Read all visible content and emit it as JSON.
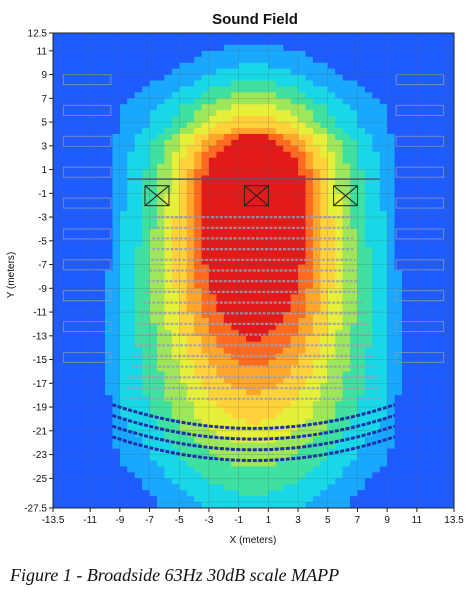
{
  "chart_data": {
    "type": "heatmap",
    "title": "Sound Field",
    "xlabel": "X (meters)",
    "ylabel": "Y (meters)",
    "xlim": [
      -13.5,
      13.5
    ],
    "ylim": [
      -27.5,
      12.5
    ],
    "x_ticks": [
      "-13.5",
      "-11",
      "-9",
      "-7",
      "-5",
      "-3",
      "-1",
      "1",
      "3",
      "5",
      "7",
      "9",
      "11",
      "13.5"
    ],
    "y_ticks": [
      "12.5",
      "11",
      "9",
      "7",
      "5",
      "3",
      "1",
      "-1",
      "-3",
      "-5",
      "-7",
      "-9",
      "-11",
      "-13",
      "-15",
      "-17",
      "-19",
      "-21",
      "-23",
      "-25",
      "-27.5"
    ],
    "grid": true,
    "color_scale": [
      "#1e5cff",
      "#1aa8ff",
      "#19d7e6",
      "#3fe0a0",
      "#9ee65a",
      "#e6ef3a",
      "#ffd23a",
      "#ffa62b",
      "#ff6b1f",
      "#e31a1a"
    ],
    "sources": [
      {
        "x": -6.5,
        "y": -1.2
      },
      {
        "x": 0.2,
        "y": -1.2
      },
      {
        "x": 6.2,
        "y": -1.2
      }
    ]
  },
  "caption": "Figure 1 - Broadside 63Hz 30dB scale MAPP"
}
